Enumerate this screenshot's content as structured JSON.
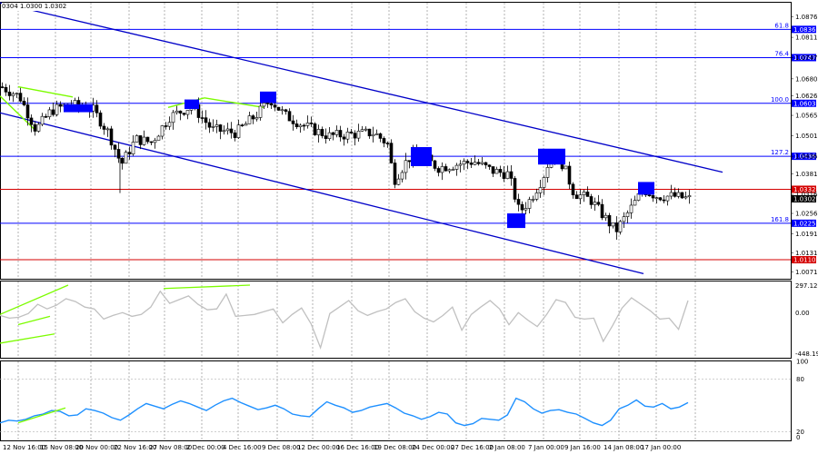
{
  "header": {
    "ohlc": "0304 1.0300 1.0302"
  },
  "colors": {
    "background": "#ffffff",
    "grid": "#000000",
    "hline": "#0000ff",
    "redline": "#d40000",
    "channel": "#0000c8",
    "green": "#7cfc00",
    "box": "#0000ff",
    "cci": "#c0c0c0",
    "rsi": "#1e90ff"
  },
  "chart_data": [
    {
      "type": "candlestick",
      "title": "",
      "ylim": [
        1.005,
        1.092
      ],
      "price_ticks": [
        "1.0876",
        "1.0811",
        "1.0747",
        "1.0680",
        "1.0626",
        "1.0565",
        "1.0501",
        "1.0436",
        "1.0381",
        "1.0316",
        "1.0256",
        "1.0191",
        "1.0131",
        "1.0071"
      ],
      "levels": [
        {
          "label": "61.8",
          "value": 1.0836,
          "tag": "1.0836",
          "color": "blue"
        },
        {
          "label": "76.4",
          "value": 1.0747,
          "tag": "1.0747",
          "color": "blue"
        },
        {
          "label": "100.0",
          "value": 1.0603,
          "tag": "1.0603",
          "color": "blue"
        },
        {
          "label": "127.2",
          "value": 1.0436,
          "tag": "1.0436",
          "color": "blue"
        },
        {
          "label": "161.8",
          "value": 1.0225,
          "tag": "1.0225",
          "color": "blue"
        },
        {
          "label": "",
          "value": 1.0332,
          "tag": "1.0332",
          "color": "red"
        },
        {
          "label": "",
          "value": 1.011,
          "tag": "1.0110",
          "color": "red"
        }
      ],
      "current_price": "1.0302",
      "channel": {
        "upper": [
          [
            0,
            1.092
          ],
          [
            795,
            1.0386
          ]
        ],
        "lower": [
          [
            0,
            1.0573
          ],
          [
            708,
            1.0066
          ]
        ]
      },
      "series_path": [
        [
          0,
          1.0655
        ],
        [
          20,
          1.0625
        ],
        [
          38,
          1.052
        ],
        [
          55,
          1.058
        ],
        [
          75,
          1.06
        ],
        [
          100,
          1.0585
        ],
        [
          118,
          1.051
        ],
        [
          132,
          1.041
        ],
        [
          148,
          1.049
        ],
        [
          165,
          1.048
        ],
        [
          185,
          1.056
        ],
        [
          210,
          1.0595
        ],
        [
          232,
          1.052
        ],
        [
          258,
          1.051
        ],
        [
          282,
          1.057
        ],
        [
          296,
          1.0615
        ],
        [
          312,
          1.0565
        ],
        [
          335,
          1.053
        ],
        [
          360,
          1.05
        ],
        [
          385,
          1.0505
        ],
        [
          410,
          1.051
        ],
        [
          425,
          1.0475
        ],
        [
          432,
          1.036
        ],
        [
          448,
          1.043
        ],
        [
          462,
          1.044
        ],
        [
          480,
          1.04
        ],
        [
          500,
          1.041
        ],
        [
          520,
          1.042
        ],
        [
          540,
          1.039
        ],
        [
          558,
          1.038
        ],
        [
          570,
          1.026
        ],
        [
          582,
          1.03
        ],
        [
          596,
          1.037
        ],
        [
          606,
          1.045
        ],
        [
          618,
          1.041
        ],
        [
          630,
          1.032
        ],
        [
          648,
          1.03
        ],
        [
          662,
          1.025
        ],
        [
          676,
          1.02
        ],
        [
          690,
          1.026
        ],
        [
          706,
          1.033
        ],
        [
          722,
          1.031
        ],
        [
          740,
          1.031
        ],
        [
          756,
          1.0302
        ]
      ],
      "x_ticks": [
        "12 Nov 16:00",
        "15 Nov 08:00",
        "20 Nov 00:00",
        "22 Nov 16:00",
        "27 Nov 08:00",
        "2 Dec 00:00",
        "4 Dec 16:00",
        "9 Dec 08:00",
        "12 Dec 00:00",
        "16 Dec 16:00",
        "19 Dec 08:00",
        "24 Dec 00:00",
        "27 Dec 16:00",
        "2 Jan 08:00",
        "7 Jan 00:00",
        "9 Jan 16:00",
        "14 Jan 08:00",
        "17 Jan 00:00"
      ]
    },
    {
      "type": "line",
      "name_hidden": true,
      "ylim": [
        -448.1954,
        297.1261
      ],
      "ticks": [
        "297.1261",
        "0.00",
        "-448.1954"
      ],
      "values": [
        -30,
        -60,
        -50,
        -10,
        90,
        40,
        80,
        150,
        120,
        60,
        40,
        -70,
        -30,
        0,
        -40,
        -20,
        60,
        230,
        100,
        140,
        180,
        90,
        30,
        40,
        200,
        -40,
        -30,
        -20,
        10,
        40,
        -110,
        -20,
        50,
        -120,
        -380,
        -10,
        60,
        130,
        20,
        -30,
        10,
        40,
        110,
        150,
        10,
        -60,
        -100,
        -30,
        60,
        -190,
        -20,
        60,
        130,
        40,
        -130,
        0,
        -80,
        -150,
        -20,
        140,
        110,
        -50,
        -70,
        -60,
        -310,
        -140,
        50,
        160,
        90,
        20,
        -70,
        -60,
        -180,
        130
      ]
    },
    {
      "type": "line",
      "ylim": [
        10,
        100
      ],
      "ticks": [
        "100",
        "80",
        "20",
        "0"
      ],
      "values": [
        30,
        33,
        32,
        34,
        38,
        40,
        44,
        43,
        38,
        39,
        46,
        44,
        41,
        36,
        33,
        39,
        46,
        52,
        49,
        46,
        51,
        55,
        52,
        48,
        44,
        50,
        55,
        58,
        53,
        49,
        45,
        47,
        50,
        46,
        40,
        38,
        37,
        46,
        54,
        50,
        47,
        42,
        44,
        48,
        50,
        52,
        47,
        41,
        38,
        34,
        37,
        42,
        40,
        30,
        27,
        29,
        35,
        34,
        33,
        39,
        58,
        54,
        46,
        41,
        44,
        45,
        42,
        40,
        35,
        30,
        27,
        33,
        46,
        50,
        56,
        49,
        48,
        52,
        46,
        48,
        53
      ]
    }
  ]
}
